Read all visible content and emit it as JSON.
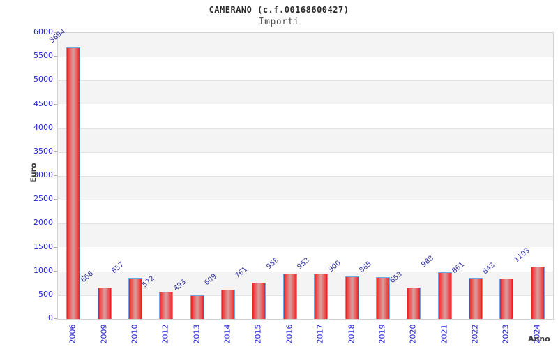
{
  "chart_data": {
    "type": "bar",
    "title": "CAMERANO (c.f.00168600427)",
    "subtitle": "Importi",
    "xlabel": "Anno",
    "ylabel": "Euro",
    "categories": [
      "2006",
      "2009",
      "2010",
      "2012",
      "2013",
      "2014",
      "2015",
      "2016",
      "2017",
      "2018",
      "2019",
      "2020",
      "2021",
      "2022",
      "2023",
      "2024"
    ],
    "values": [
      5694,
      666,
      857,
      572,
      493,
      609,
      761,
      958,
      953,
      900,
      885,
      653,
      988,
      861,
      843,
      1103
    ],
    "ylim": [
      0,
      6000
    ],
    "ytick_step": 500,
    "grid": "alternating-horizontal-bands",
    "legend": "none",
    "colors": {
      "bar_edge_red": "#e41c1c",
      "bar_center": "#d9a0a0",
      "bar_border_blue": "#73a6de",
      "tick_label_blue": "#2323d6",
      "value_label_navy": "#3434a0",
      "band_gray": "#f4f4f4",
      "axis_title_gray": "#3e3e3e"
    }
  }
}
